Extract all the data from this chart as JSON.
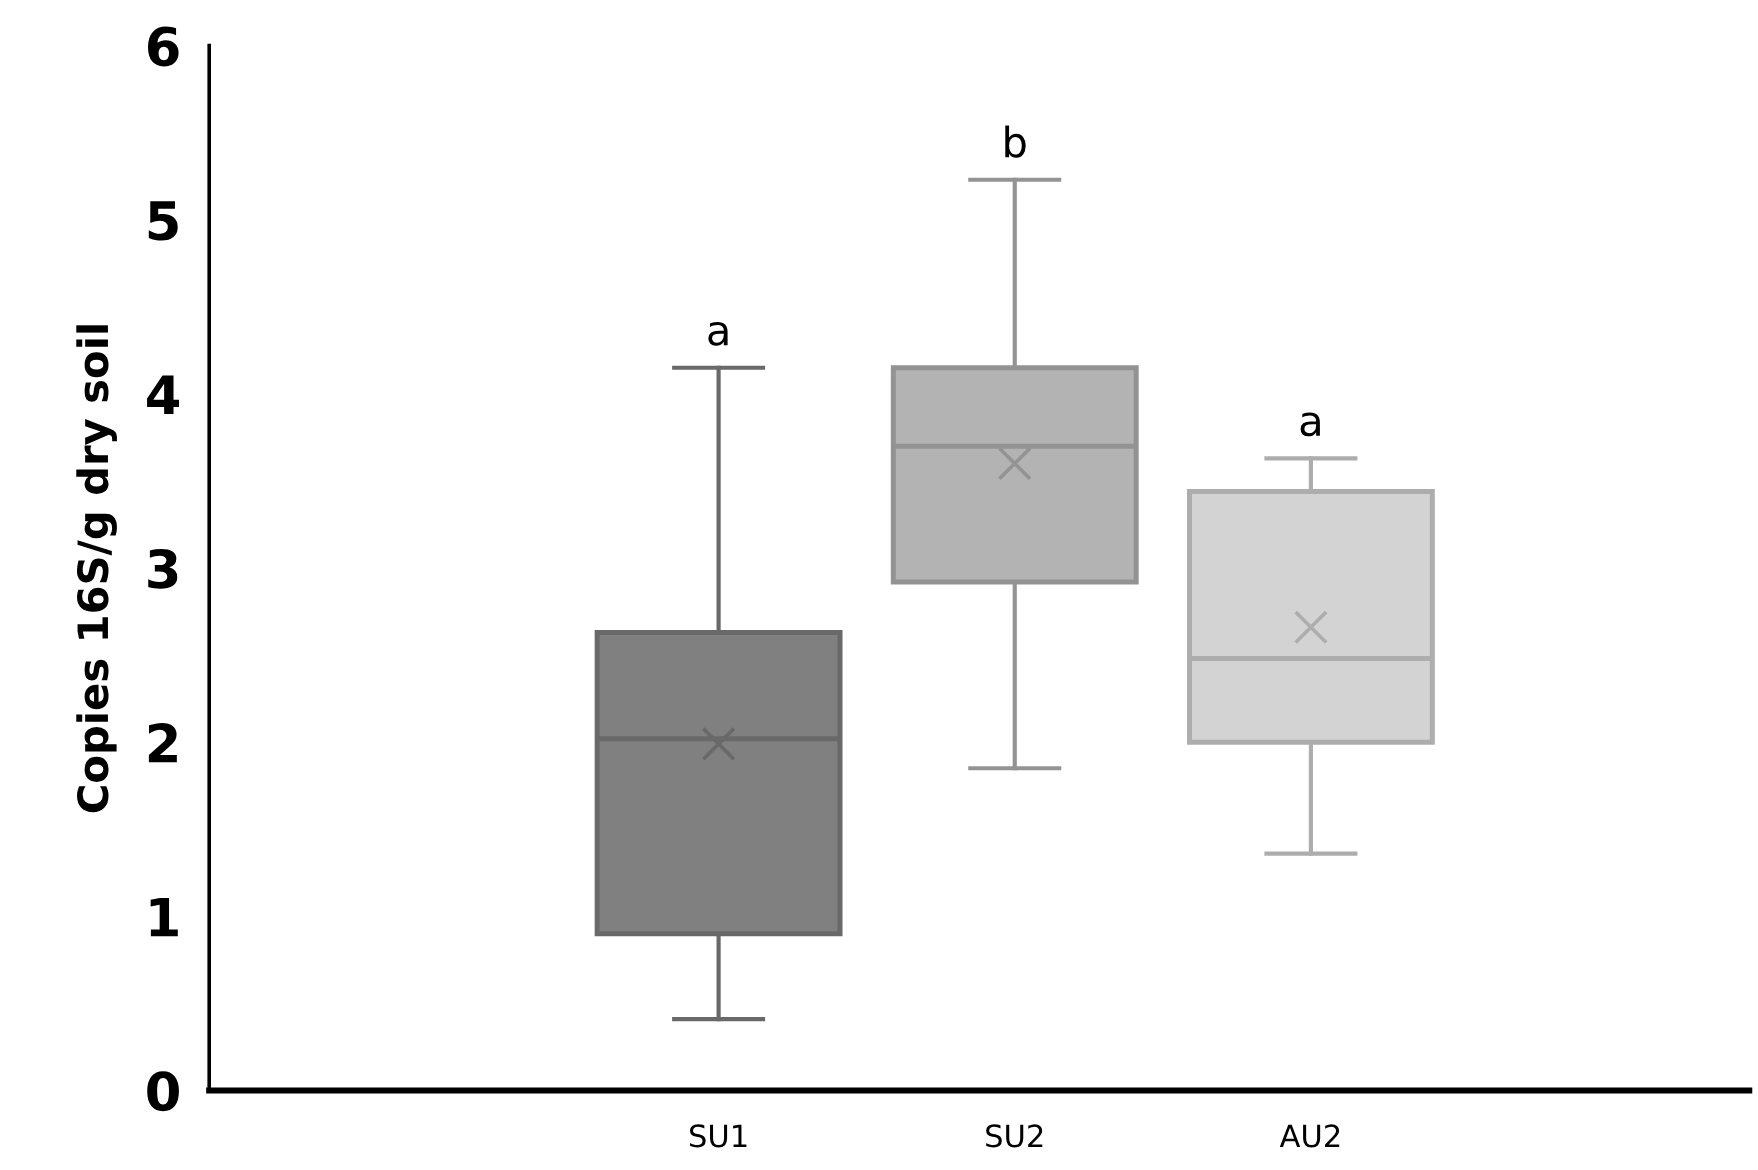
{
  "chart_data": {
    "type": "box",
    "ylabel": "Copies 16S/g dry soil",
    "categories": [
      "SU1",
      "SU2",
      "AU2"
    ],
    "colors": [
      "#808080",
      "#b3b3b3",
      "#d3d3d3"
    ],
    "boxes": [
      {
        "low": 0.41,
        "q1": 0.9,
        "median": 2.02,
        "q3": 2.63,
        "high": 4.15,
        "mean": 1.99
      },
      {
        "low": 1.85,
        "q1": 2.92,
        "median": 3.7,
        "q3": 4.15,
        "high": 5.23,
        "mean": 3.6
      },
      {
        "low": 1.36,
        "q1": 2.0,
        "median": 2.48,
        "q3": 3.44,
        "high": 3.63,
        "mean": 2.66
      }
    ],
    "annotations": [
      {
        "text": "a",
        "x": "SU1",
        "y": 4.15
      },
      {
        "text": "b",
        "x": "SU2",
        "y": 5.23
      },
      {
        "text": "a",
        "x": "AU2",
        "y": 3.63
      }
    ],
    "ylim": [
      0,
      6
    ],
    "yticks": [
      0,
      1,
      2,
      3,
      4,
      5,
      6
    ],
    "grid": false
  }
}
